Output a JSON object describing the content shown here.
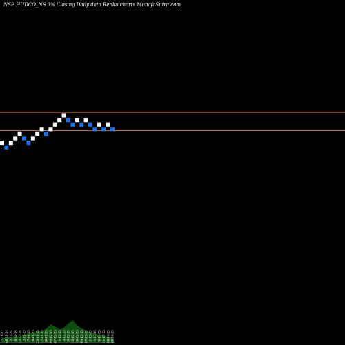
{
  "chart_data": {
    "type": "renko",
    "title": "NSE HUDCO_NS 3% Closing Daily data Renko charts MunafaSutra.com",
    "colors": {
      "background": "#000000",
      "up_brick": "#ffffff",
      "down_brick": "#1e6fe0",
      "resistance_line": "#c0622a",
      "volume": "#0f4d0f"
    },
    "bricks": [
      {
        "dir": "up",
        "level": 0
      },
      {
        "dir": "down",
        "level": -1
      },
      {
        "dir": "up",
        "level": 0
      },
      {
        "dir": "up",
        "level": 1
      },
      {
        "dir": "up",
        "level": 2
      },
      {
        "dir": "down",
        "level": 1
      },
      {
        "dir": "down",
        "level": 0
      },
      {
        "dir": "up",
        "level": 1
      },
      {
        "dir": "up",
        "level": 2
      },
      {
        "dir": "up",
        "level": 3
      },
      {
        "dir": "down",
        "level": 2
      },
      {
        "dir": "up",
        "level": 3
      },
      {
        "dir": "up",
        "level": 4
      },
      {
        "dir": "up",
        "level": 5
      },
      {
        "dir": "up",
        "level": 6
      },
      {
        "dir": "down",
        "level": 5
      },
      {
        "dir": "down",
        "level": 4
      },
      {
        "dir": "up",
        "level": 5
      },
      {
        "dir": "down",
        "level": 4
      },
      {
        "dir": "up",
        "level": 5
      },
      {
        "dir": "down",
        "level": 4
      },
      {
        "dir": "down",
        "level": 3
      },
      {
        "dir": "up",
        "level": 4
      },
      {
        "dir": "down",
        "level": 3
      },
      {
        "dir": "up",
        "level": 4
      },
      {
        "dir": "down",
        "level": 3
      }
    ],
    "resistance_levels": [
      6.7,
      2.7
    ],
    "date_labels": [
      "17-11-27",
      "08-11-24",
      "12-12-24",
      "16-12-24",
      "23-12-24",
      "13-01-25",
      "17-01-25",
      "20-01-25",
      "23-01-25",
      "27-01-25",
      "30-01-25",
      "04-02-25",
      "07-02-25",
      "11-02-25",
      "14-02-25",
      "19-02-25",
      "25-02-25",
      "28-02-25",
      "04-03-25",
      "07-03-25",
      "11-03-25",
      "14-03-25",
      "18-03-25",
      "21-03-25",
      "08-04-25",
      "09-04-25"
    ],
    "volume": [
      4,
      6,
      5,
      7,
      6,
      8,
      9,
      10,
      12,
      11,
      14,
      18,
      16,
      13,
      15,
      19,
      22,
      17,
      14,
      12,
      10,
      9,
      8,
      7,
      6,
      5
    ]
  }
}
